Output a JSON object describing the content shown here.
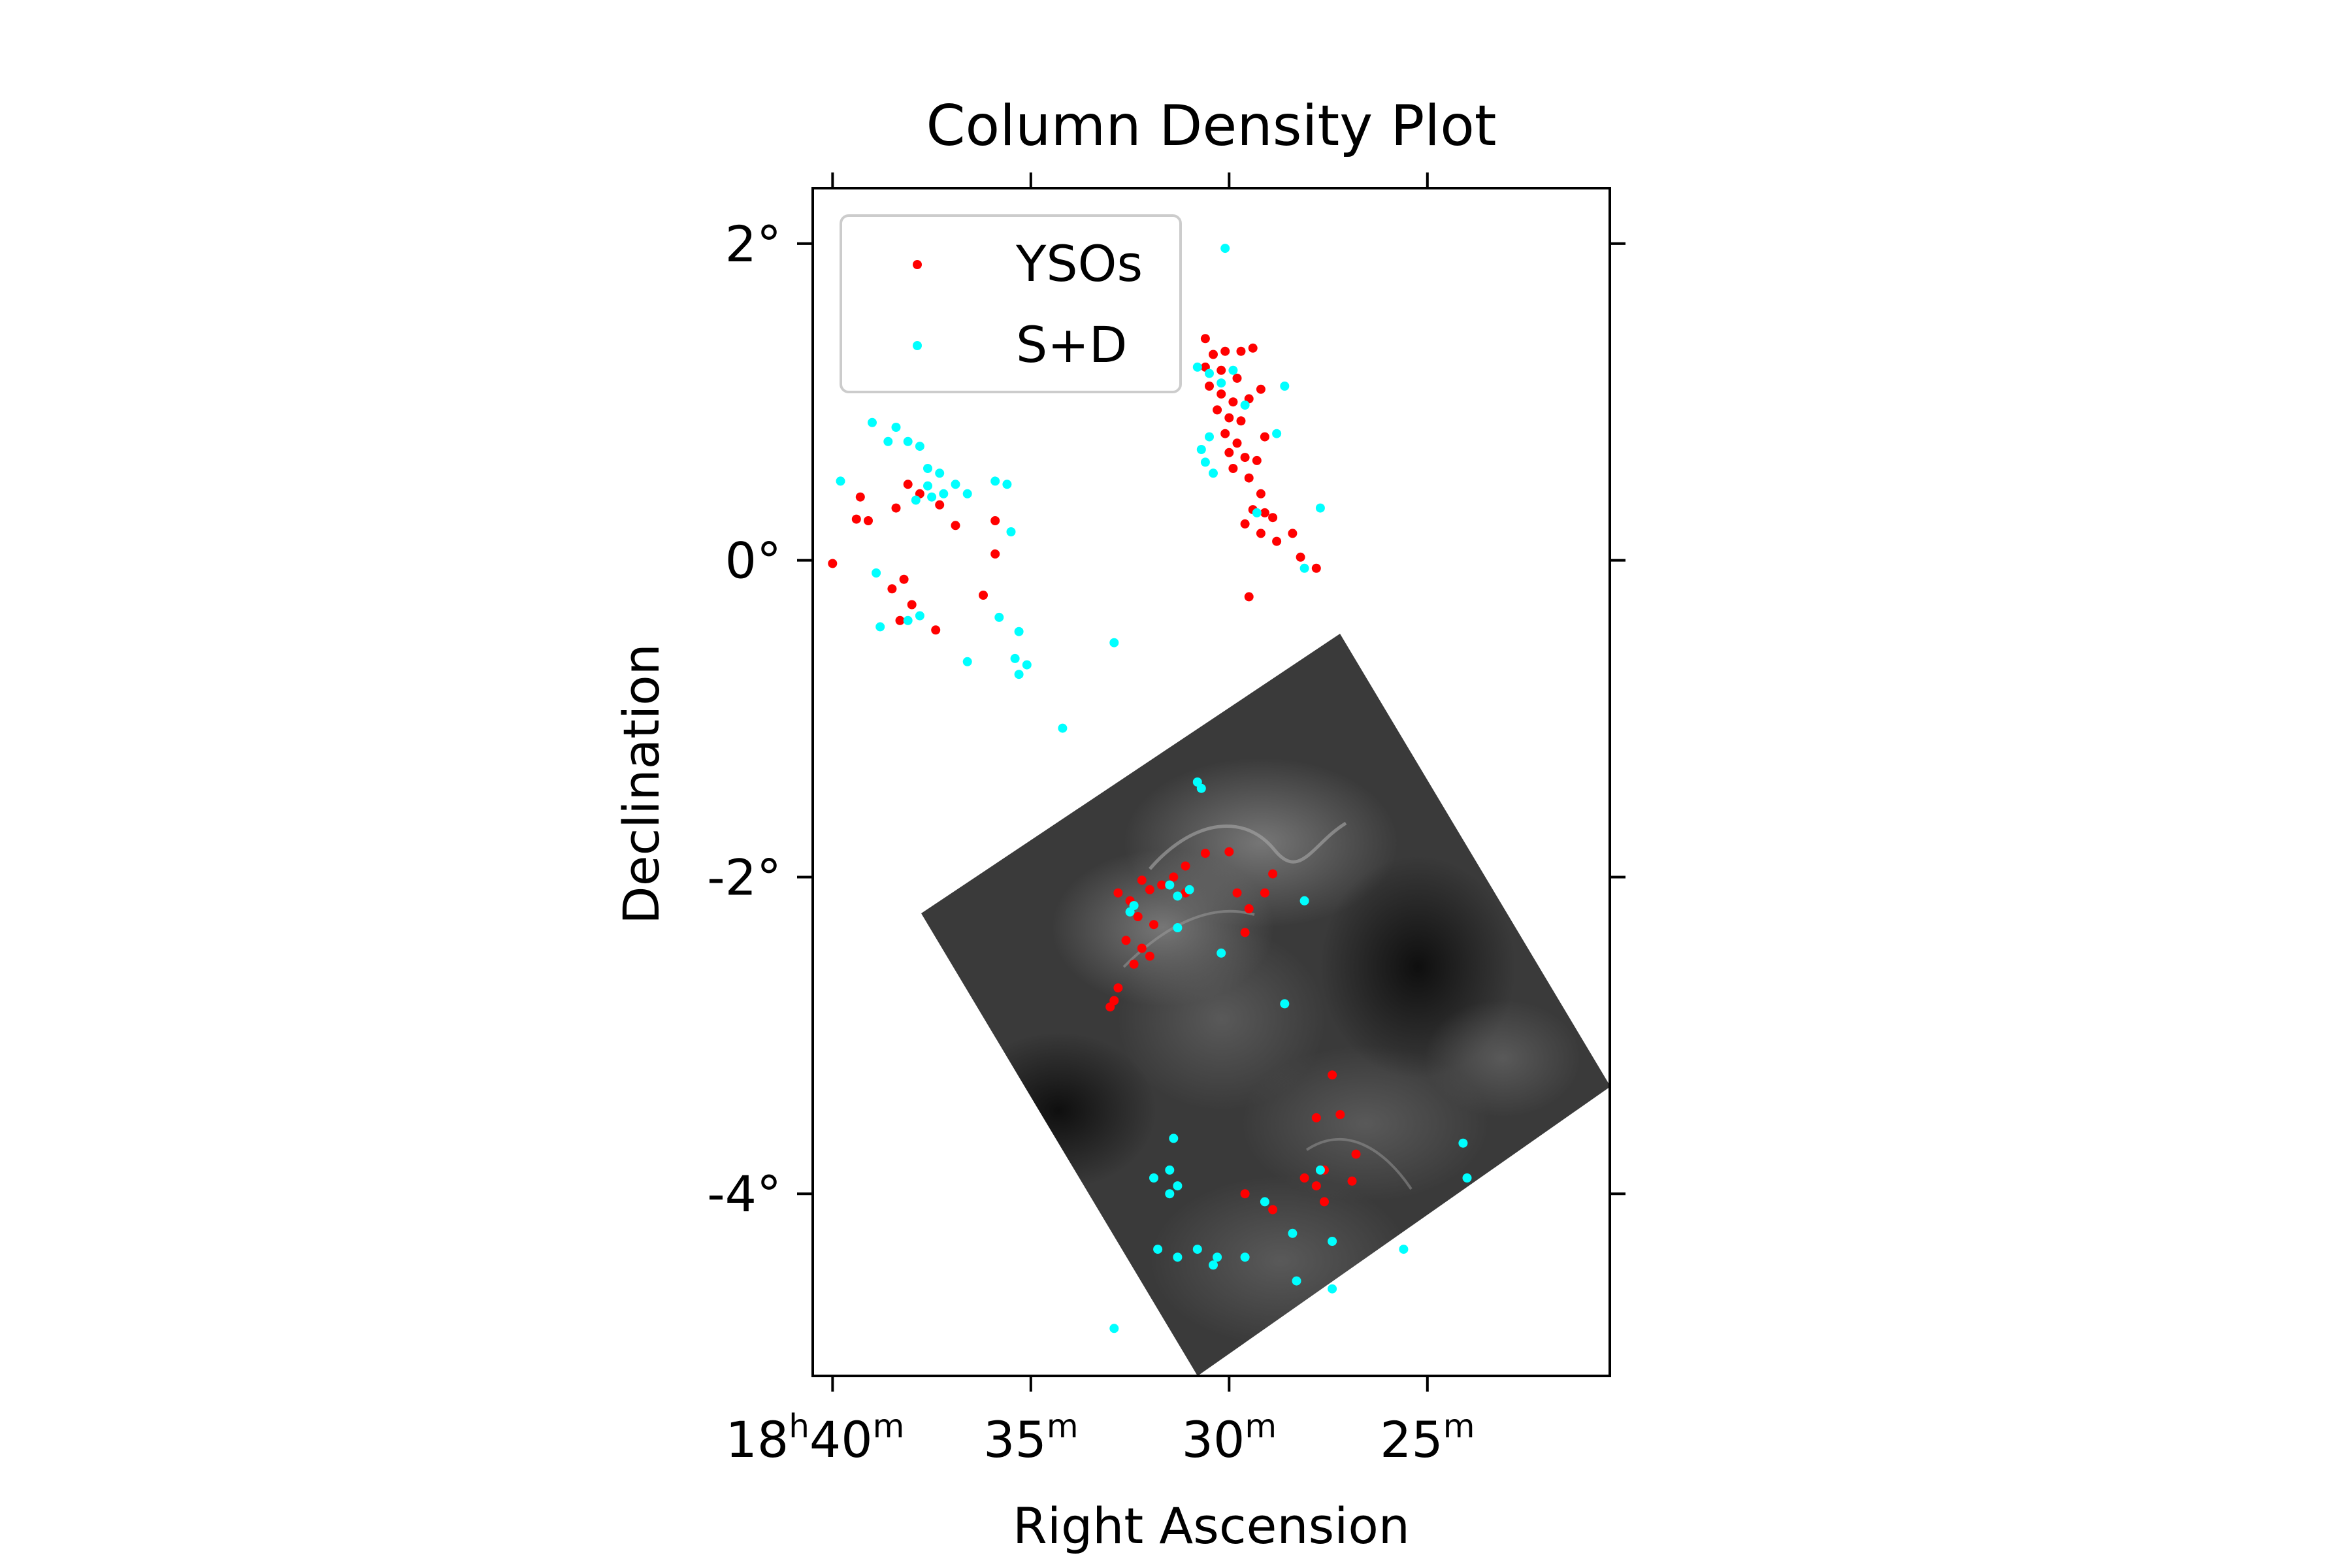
{
  "chart_data": {
    "type": "scatter",
    "title": "Column Density Plot",
    "xlabel": "Right Ascension",
    "ylabel": "Declination",
    "xlim_minutes": [
      40.5,
      20.4
    ],
    "ylim_deg": [
      -5.15,
      2.35
    ],
    "ra_hours": "18",
    "x_ticks": [
      {
        "value": 40,
        "label": "40",
        "sup": "m",
        "prefix": "18",
        "prefix_sup": "h"
      },
      {
        "value": 35,
        "label": "35",
        "sup": "m"
      },
      {
        "value": 30,
        "label": "30",
        "sup": "m"
      },
      {
        "value": 25,
        "label": "25",
        "sup": "m"
      }
    ],
    "y_ticks": [
      {
        "value": 2,
        "label": "2°"
      },
      {
        "value": 0,
        "label": "0°"
      },
      {
        "value": -2,
        "label": "-2°"
      },
      {
        "value": -4,
        "label": "-4°"
      }
    ],
    "legend": {
      "position": "upper-left",
      "entries": [
        "YSOs",
        "S+D"
      ]
    },
    "image_overlay": {
      "description": "grayscale column density map",
      "colormap": "gray"
    },
    "series": [
      {
        "name": "YSOs",
        "color": "#ff0000",
        "points": [
          [
            40.0,
            -0.02
          ],
          [
            39.3,
            0.4
          ],
          [
            39.4,
            0.26
          ],
          [
            39.1,
            0.25
          ],
          [
            38.4,
            0.33
          ],
          [
            38.1,
            0.48
          ],
          [
            37.8,
            0.42
          ],
          [
            37.3,
            0.35
          ],
          [
            36.9,
            0.22
          ],
          [
            35.9,
            0.25
          ],
          [
            35.9,
            0.04
          ],
          [
            36.2,
            -0.22
          ],
          [
            37.4,
            -0.44
          ],
          [
            38.0,
            -0.28
          ],
          [
            38.3,
            -0.38
          ],
          [
            38.5,
            -0.18
          ],
          [
            38.2,
            -0.12
          ],
          [
            30.6,
            1.4
          ],
          [
            30.4,
            1.3
          ],
          [
            30.1,
            1.32
          ],
          [
            29.7,
            1.32
          ],
          [
            29.4,
            1.34
          ],
          [
            30.6,
            1.22
          ],
          [
            30.2,
            1.2
          ],
          [
            29.8,
            1.15
          ],
          [
            30.5,
            1.1
          ],
          [
            30.2,
            1.05
          ],
          [
            29.9,
            1.0
          ],
          [
            29.5,
            1.02
          ],
          [
            29.2,
            1.08
          ],
          [
            30.3,
            0.95
          ],
          [
            30.0,
            0.9
          ],
          [
            29.7,
            0.88
          ],
          [
            30.1,
            0.8
          ],
          [
            29.8,
            0.74
          ],
          [
            30.0,
            0.68
          ],
          [
            29.6,
            0.65
          ],
          [
            29.3,
            0.63
          ],
          [
            29.9,
            0.58
          ],
          [
            29.5,
            0.52
          ],
          [
            29.1,
            0.78
          ],
          [
            29.2,
            0.42
          ],
          [
            29.4,
            0.32
          ],
          [
            29.1,
            0.3
          ],
          [
            28.9,
            0.27
          ],
          [
            29.6,
            0.23
          ],
          [
            29.2,
            0.17
          ],
          [
            28.8,
            0.12
          ],
          [
            28.4,
            0.17
          ],
          [
            28.2,
            0.02
          ],
          [
            27.8,
            -0.05
          ],
          [
            29.5,
            -0.23
          ],
          [
            32.8,
            -2.1
          ],
          [
            32.5,
            -2.15
          ],
          [
            32.2,
            -2.02
          ],
          [
            32.0,
            -2.08
          ],
          [
            31.7,
            -2.05
          ],
          [
            31.4,
            -2.0
          ],
          [
            31.1,
            -2.1
          ],
          [
            32.3,
            -2.25
          ],
          [
            31.9,
            -2.3
          ],
          [
            32.6,
            -2.4
          ],
          [
            32.2,
            -2.45
          ],
          [
            32.0,
            -2.5
          ],
          [
            32.4,
            -2.55
          ],
          [
            32.8,
            -2.7
          ],
          [
            32.9,
            -2.78
          ],
          [
            33.0,
            -2.82
          ],
          [
            31.1,
            -1.93
          ],
          [
            30.6,
            -1.85
          ],
          [
            30.0,
            -1.84
          ],
          [
            29.8,
            -2.1
          ],
          [
            29.5,
            -2.2
          ],
          [
            29.6,
            -2.35
          ],
          [
            29.1,
            -2.1
          ],
          [
            28.9,
            -1.98
          ],
          [
            27.4,
            -3.25
          ],
          [
            27.2,
            -3.5
          ],
          [
            27.8,
            -3.52
          ],
          [
            26.8,
            -3.75
          ],
          [
            27.6,
            -3.85
          ],
          [
            28.1,
            -3.9
          ],
          [
            27.8,
            -3.95
          ],
          [
            27.6,
            -4.05
          ],
          [
            28.9,
            -4.1
          ],
          [
            29.6,
            -4.0
          ],
          [
            26.9,
            -3.92
          ]
        ]
      },
      {
        "name": "S+D",
        "color": "#00ffff",
        "points": [
          [
            39.8,
            0.5
          ],
          [
            39.0,
            0.87
          ],
          [
            38.6,
            0.75
          ],
          [
            38.4,
            0.84
          ],
          [
            38.1,
            0.75
          ],
          [
            37.8,
            0.72
          ],
          [
            37.6,
            0.58
          ],
          [
            37.3,
            0.55
          ],
          [
            37.6,
            0.47
          ],
          [
            37.2,
            0.42
          ],
          [
            36.9,
            0.48
          ],
          [
            36.6,
            0.42
          ],
          [
            35.9,
            0.5
          ],
          [
            35.6,
            0.48
          ],
          [
            35.5,
            0.18
          ],
          [
            37.5,
            0.4
          ],
          [
            37.9,
            0.38
          ],
          [
            38.9,
            -0.08
          ],
          [
            38.1,
            -0.38
          ],
          [
            37.8,
            -0.35
          ],
          [
            38.8,
            -0.42
          ],
          [
            36.6,
            -0.64
          ],
          [
            35.8,
            -0.36
          ],
          [
            35.3,
            -0.45
          ],
          [
            35.4,
            -0.62
          ],
          [
            35.1,
            -0.66
          ],
          [
            35.3,
            -0.72
          ],
          [
            34.2,
            -1.06
          ],
          [
            32.9,
            -0.52
          ],
          [
            30.1,
            1.97
          ],
          [
            30.8,
            1.22
          ],
          [
            30.5,
            1.18
          ],
          [
            30.2,
            1.12
          ],
          [
            29.9,
            1.2
          ],
          [
            29.6,
            0.98
          ],
          [
            28.6,
            1.1
          ],
          [
            28.8,
            0.8
          ],
          [
            30.7,
            0.7
          ],
          [
            30.6,
            0.62
          ],
          [
            30.4,
            0.55
          ],
          [
            30.5,
            0.78
          ],
          [
            29.3,
            0.3
          ],
          [
            27.7,
            0.33
          ],
          [
            28.1,
            -0.05
          ],
          [
            30.8,
            -1.4
          ],
          [
            30.7,
            -1.44
          ],
          [
            32.5,
            -2.22
          ],
          [
            32.4,
            -2.18
          ],
          [
            31.5,
            -2.05
          ],
          [
            31.3,
            -2.12
          ],
          [
            31.0,
            -2.08
          ],
          [
            31.3,
            -2.32
          ],
          [
            30.2,
            -2.48
          ],
          [
            28.1,
            -2.15
          ],
          [
            28.6,
            -2.8
          ],
          [
            31.4,
            -3.65
          ],
          [
            31.5,
            -3.85
          ],
          [
            31.9,
            -3.9
          ],
          [
            31.3,
            -3.95
          ],
          [
            31.5,
            -4.0
          ],
          [
            31.8,
            -4.35
          ],
          [
            31.3,
            -4.4
          ],
          [
            30.8,
            -4.35
          ],
          [
            30.3,
            -4.4
          ],
          [
            29.6,
            -4.4
          ],
          [
            30.4,
            -4.45
          ],
          [
            28.3,
            -4.55
          ],
          [
            27.4,
            -4.6
          ],
          [
            28.4,
            -4.25
          ],
          [
            27.4,
            -4.3
          ],
          [
            29.1,
            -4.05
          ],
          [
            27.7,
            -3.85
          ],
          [
            25.6,
            -4.35
          ],
          [
            24.1,
            -3.68
          ],
          [
            24.0,
            -3.9
          ],
          [
            32.9,
            -4.85
          ]
        ]
      }
    ]
  }
}
